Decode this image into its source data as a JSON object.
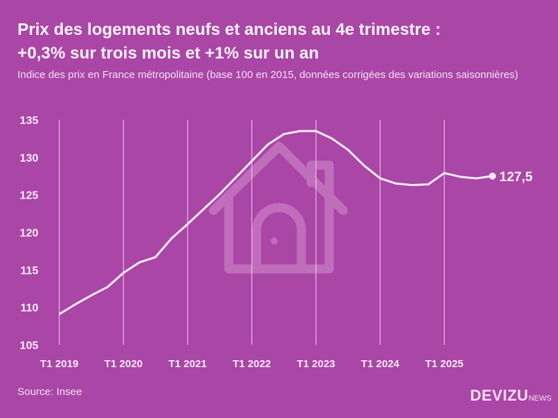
{
  "header": {
    "title_line1": "Prix des logements neufs et anciens au 4e trimestre :",
    "title_line2": "+0,3% sur trois mois et +1% sur un an",
    "subtitle": "Indice des prix en France métropolitaine (base 100 en 2015, données corrigées des variations saisonnières)"
  },
  "footer": {
    "source": "Source: Insee",
    "logo_main": "DEVIZU",
    "logo_suffix": "NEWS"
  },
  "colors": {
    "background": "#aa46a5",
    "line": "#fbeafb",
    "watermark": "#c06ebb"
  },
  "watermark_icon": "house-icon",
  "chart_data": {
    "type": "line",
    "title": "Prix des logements neufs et anciens au 4e trimestre : +0,3% sur trois mois et +1% sur un an",
    "xlabel": "",
    "ylabel": "",
    "ylim": [
      105,
      135
    ],
    "yticks": [
      "105",
      "110",
      "115",
      "120",
      "125",
      "130",
      "135"
    ],
    "xticks": [
      "T1 2019",
      "T1 2020",
      "T1 2021",
      "T1 2022",
      "T1 2023",
      "T1 2024",
      "T1 2025"
    ],
    "grid": "vertical",
    "x": [
      "T1 2019",
      "T2 2019",
      "T3 2019",
      "T4 2019",
      "T1 2020",
      "T2 2020",
      "T3 2020",
      "T4 2020",
      "T1 2021",
      "T2 2021",
      "T3 2021",
      "T4 2021",
      "T1 2022",
      "T2 2022",
      "T3 2022",
      "T4 2022",
      "T1 2023",
      "T2 2023",
      "T3 2023",
      "T4 2023",
      "T1 2024",
      "T2 2024",
      "T3 2024",
      "T4 2024",
      "T1 2025",
      "T2 2025",
      "T3 2025",
      "T4 2025"
    ],
    "values": [
      109.1,
      110.4,
      111.6,
      112.7,
      114.6,
      116.0,
      116.7,
      119.2,
      121.1,
      123.1,
      125.1,
      127.3,
      129.5,
      131.7,
      133.1,
      133.5,
      133.5,
      132.5,
      131.0,
      128.9,
      127.2,
      126.5,
      126.3,
      126.4,
      127.9,
      127.4,
      127.2,
      127.5
    ],
    "last_label": "127,5"
  }
}
